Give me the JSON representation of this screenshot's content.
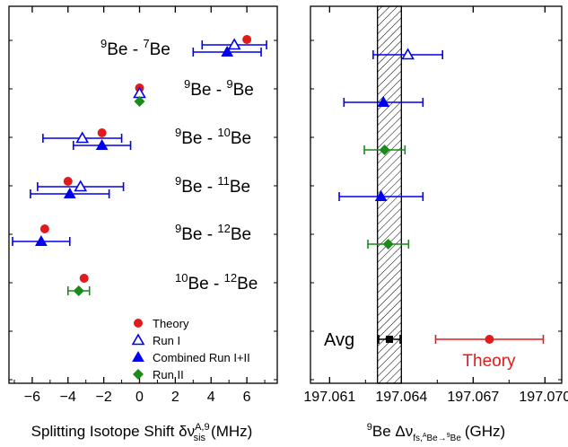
{
  "chart_data": [
    {
      "type": "scatter",
      "xlabel_main": "Splitting Isotope Shift δν",
      "xlabel_sup": "A,9",
      "xlabel_sub": "sis",
      "xlabel_unit": "(MHz)",
      "xlim": [
        -7.3,
        7.7
      ],
      "xticks": [
        -6,
        -4,
        -2,
        0,
        2,
        4,
        6
      ],
      "rows": [
        {
          "label_pre_sup": "9",
          "label_a": "Be - ",
          "label_mid_sup": "7",
          "label_b": "Be"
        },
        {
          "label_pre_sup": "9",
          "label_a": "Be - ",
          "label_mid_sup": "9",
          "label_b": "Be"
        },
        {
          "label_pre_sup": "9",
          "label_a": "Be - ",
          "label_mid_sup": "10",
          "label_b": "Be"
        },
        {
          "label_pre_sup": "9",
          "label_a": "Be - ",
          "label_mid_sup": "11",
          "label_b": "Be"
        },
        {
          "label_pre_sup": "9",
          "label_a": "Be - ",
          "label_mid_sup": "12",
          "label_b": "Be"
        },
        {
          "label_pre_sup": "10",
          "label_a": "Be - ",
          "label_mid_sup": "12",
          "label_b": "Be"
        }
      ],
      "series": [
        {
          "name": "Theory",
          "marker": "circle",
          "color": "#e31a1c",
          "points": [
            {
              "row": 0,
              "x": 6.0,
              "err": 0
            },
            {
              "row": 1,
              "x": 0.0,
              "err": 0
            },
            {
              "row": 2,
              "x": -2.1,
              "err": 0
            },
            {
              "row": 3,
              "x": -4.0,
              "err": 0
            },
            {
              "row": 4,
              "x": -5.3,
              "err": 0
            },
            {
              "row": 5,
              "x": -3.1,
              "err": 0
            }
          ]
        },
        {
          "name": "Run I",
          "marker": "triangle-open",
          "color": "#0000ee",
          "points": [
            {
              "row": 0,
              "x": 5.3,
              "err": 1.8
            },
            {
              "row": 1,
              "x": 0.0,
              "err": 0
            },
            {
              "row": 2,
              "x": -3.2,
              "err": 2.2
            },
            {
              "row": 3,
              "x": -3.3,
              "err": 2.4
            }
          ]
        },
        {
          "name": "Combined Run I+II",
          "marker": "triangle",
          "color": "#0000ee",
          "points": [
            {
              "row": 0,
              "x": 4.9,
              "err": 1.9
            },
            {
              "row": 2,
              "x": -2.1,
              "err": 1.6
            },
            {
              "row": 3,
              "x": -3.9,
              "err": 2.2
            },
            {
              "row": 4,
              "x": -5.5,
              "err": 1.6
            }
          ]
        },
        {
          "name": "Run II",
          "marker": "diamond",
          "color": "#1a8a1a",
          "points": [
            {
              "row": 1,
              "x": 0.0,
              "err": 0
            },
            {
              "row": 5,
              "x": -3.4,
              "err": 0.6
            }
          ]
        }
      ],
      "legend_position": "bottom-center"
    },
    {
      "type": "scatter",
      "xlabel_pre_sup": "9",
      "xlabel_main": "Be Δν",
      "xlabel_sub": "fs,",
      "xlabel_sub_sup1": "A",
      "xlabel_sub_mid": "Be→",
      "xlabel_sub_sup2": "9",
      "xlabel_sub_end": "Be",
      "xlabel_unit": "(GHz)",
      "xlim": [
        197.0602,
        197.0707
      ],
      "xticks": [
        "197.061",
        "197.064",
        "197.067",
        "197.070"
      ],
      "xtick_values": [
        197.061,
        197.064,
        197.067,
        197.07
      ],
      "band": {
        "x0": 197.063,
        "x1": 197.064
      },
      "points": [
        {
          "row": 0,
          "x": 197.06427,
          "err": 0.00145,
          "marker": "triangle-open",
          "color": "#0000ee"
        },
        {
          "row": 1,
          "x": 197.06325,
          "err": 0.00165,
          "marker": "triangle",
          "color": "#0000ee"
        },
        {
          "row": 2,
          "x": 197.0633,
          "err": 0.00085,
          "marker": "diamond",
          "color": "#1a8a1a"
        },
        {
          "row": 3,
          "x": 197.06315,
          "err": 0.00175,
          "marker": "triangle",
          "color": "#0000ee"
        },
        {
          "row": 4,
          "x": 197.06345,
          "err": 0.00085,
          "marker": "diamond",
          "color": "#1a8a1a"
        }
      ],
      "avg": {
        "label": "Avg",
        "x": 197.0635,
        "err": 0.00045
      },
      "theory": {
        "label": "Theory",
        "x": 197.06768,
        "err": 0.00225,
        "color": "#e31a1c"
      }
    }
  ]
}
